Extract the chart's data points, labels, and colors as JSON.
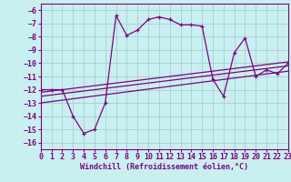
{
  "xlabel": "Windchill (Refroidissement éolien,°C)",
  "bg_color": "#c8f0f0",
  "line_color": "#800080",
  "grid_color": "#a0c8d0",
  "x_data": [
    0,
    1,
    2,
    3,
    4,
    5,
    6,
    7,
    8,
    9,
    10,
    11,
    12,
    13,
    14,
    15,
    16,
    17,
    18,
    19,
    20,
    21,
    22,
    23
  ],
  "main_y": [
    -12.0,
    -12.0,
    -12.0,
    -14.0,
    -15.3,
    -15.0,
    -13.0,
    -6.4,
    -7.9,
    -7.5,
    -6.7,
    -6.5,
    -6.7,
    -7.1,
    -7.1,
    -7.2,
    -11.2,
    -12.5,
    -9.2,
    -8.1,
    -11.0,
    -10.5,
    -10.8,
    -10.0
  ],
  "line1_x": [
    0,
    23
  ],
  "line1_y": [
    -12.2,
    -9.9
  ],
  "line2_x": [
    0,
    23
  ],
  "line2_y": [
    -12.5,
    -10.2
  ],
  "line3_x": [
    0,
    23
  ],
  "line3_y": [
    -13.0,
    -10.6
  ],
  "xlim": [
    0,
    23
  ],
  "ylim": [
    -16.5,
    -5.5
  ],
  "yticks": [
    -6,
    -7,
    -8,
    -9,
    -10,
    -11,
    -12,
    -13,
    -14,
    -15,
    -16
  ],
  "xticks": [
    0,
    1,
    2,
    3,
    4,
    5,
    6,
    7,
    8,
    9,
    10,
    11,
    12,
    13,
    14,
    15,
    16,
    17,
    18,
    19,
    20,
    21,
    22,
    23
  ],
  "tick_fontsize": 6,
  "xlabel_fontsize": 6
}
